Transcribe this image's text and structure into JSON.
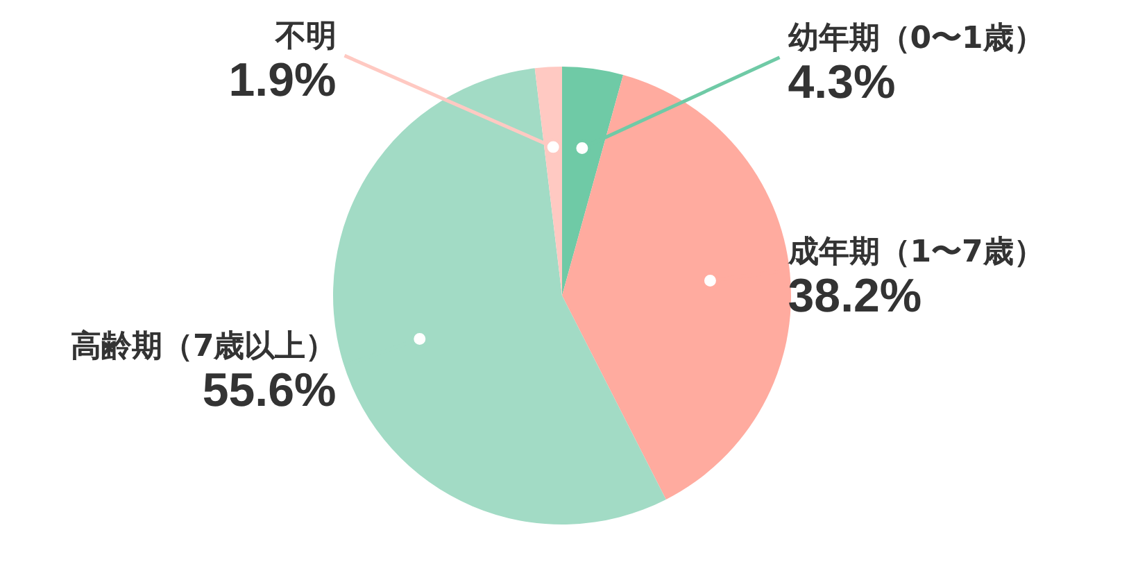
{
  "chart_data": {
    "type": "pie",
    "categories": [
      "幼年期（0〜1歳）",
      "成年期（1〜7歳）",
      "高齢期（7歳以上）",
      "不明"
    ],
    "values": [
      4.3,
      38.2,
      55.6,
      1.9
    ],
    "colors": [
      "#6fcaa6",
      "#ffab9f",
      "#a2dbc5",
      "#ffc9c2"
    ],
    "value_labels": [
      "4.3%",
      "38.2%",
      "55.6%",
      "1.9%"
    ]
  }
}
